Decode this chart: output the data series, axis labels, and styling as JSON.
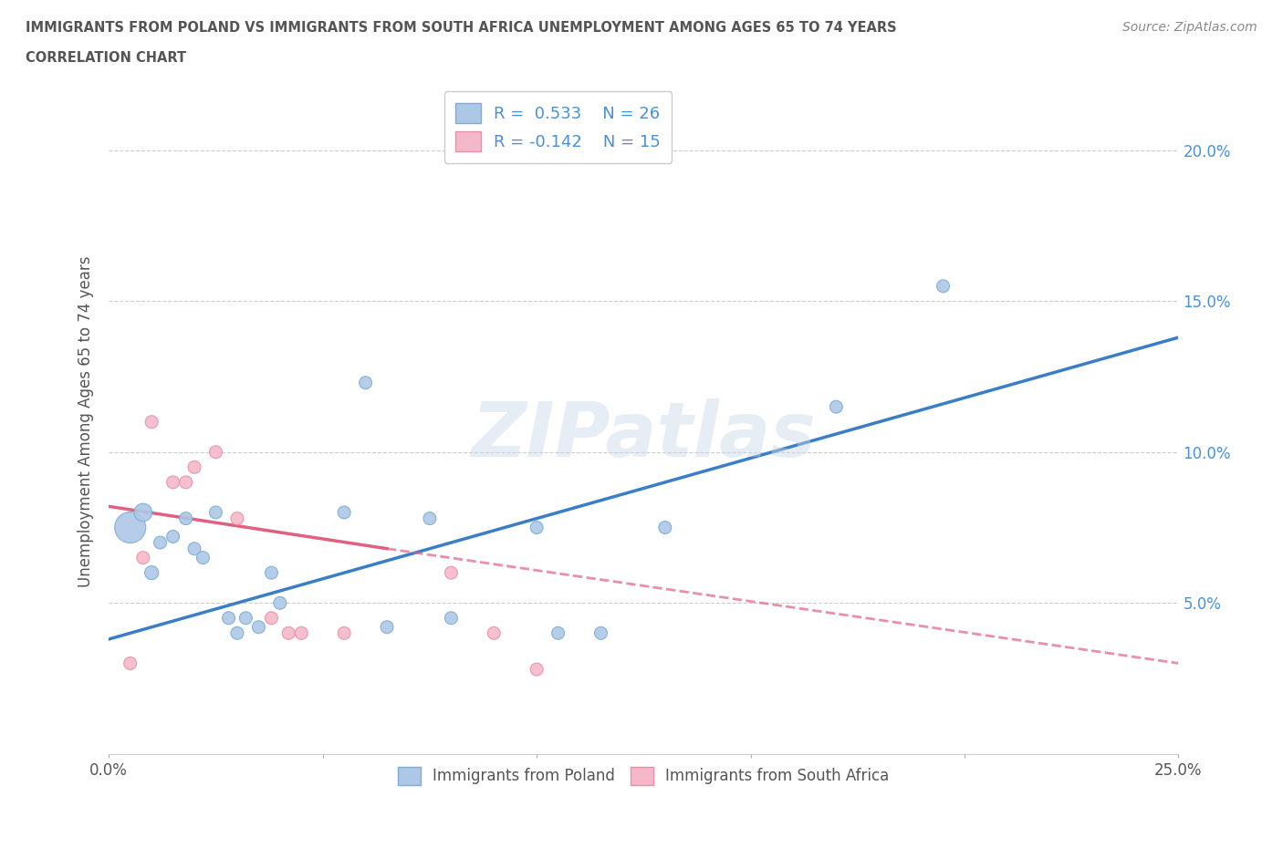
{
  "title_line1": "IMMIGRANTS FROM POLAND VS IMMIGRANTS FROM SOUTH AFRICA UNEMPLOYMENT AMONG AGES 65 TO 74 YEARS",
  "title_line2": "CORRELATION CHART",
  "source": "Source: ZipAtlas.com",
  "ylabel": "Unemployment Among Ages 65 to 74 years",
  "xlim": [
    0.0,
    0.25
  ],
  "ylim": [
    0.0,
    0.22
  ],
  "xticks": [
    0.0,
    0.05,
    0.1,
    0.15,
    0.2,
    0.25
  ],
  "yticks": [
    0.05,
    0.1,
    0.15,
    0.2
  ],
  "xtick_labels": [
    "0.0%",
    "",
    "",
    "",
    "",
    "25.0%"
  ],
  "ytick_labels_right": [
    "5.0%",
    "10.0%",
    "15.0%",
    "20.0%"
  ],
  "poland_color": "#adc8e6",
  "south_africa_color": "#f5b8c8",
  "poland_edge_color": "#7aadd4",
  "south_africa_edge_color": "#e88faa",
  "poland_line_color": "#3a7ec8",
  "south_africa_line_color": "#e06080",
  "r_poland": 0.533,
  "n_poland": 26,
  "r_south_africa": -0.142,
  "n_south_africa": 15,
  "legend_poland": "Immigrants from Poland",
  "legend_south_africa": "Immigrants from South Africa",
  "poland_scatter_x": [
    0.005,
    0.008,
    0.01,
    0.012,
    0.015,
    0.018,
    0.02,
    0.022,
    0.025,
    0.028,
    0.03,
    0.032,
    0.035,
    0.038,
    0.04,
    0.055,
    0.06,
    0.065,
    0.075,
    0.08,
    0.1,
    0.105,
    0.115,
    0.13,
    0.17,
    0.195
  ],
  "poland_scatter_y": [
    0.075,
    0.08,
    0.06,
    0.07,
    0.072,
    0.078,
    0.068,
    0.065,
    0.08,
    0.045,
    0.04,
    0.045,
    0.042,
    0.06,
    0.05,
    0.08,
    0.123,
    0.042,
    0.078,
    0.045,
    0.075,
    0.04,
    0.04,
    0.075,
    0.115,
    0.155
  ],
  "poland_sizes": [
    600,
    200,
    120,
    100,
    100,
    100,
    100,
    100,
    100,
    100,
    100,
    100,
    100,
    100,
    100,
    100,
    100,
    100,
    100,
    100,
    100,
    100,
    100,
    100,
    100,
    100
  ],
  "south_africa_scatter_x": [
    0.005,
    0.008,
    0.01,
    0.015,
    0.018,
    0.02,
    0.025,
    0.03,
    0.038,
    0.042,
    0.045,
    0.055,
    0.08,
    0.09,
    0.1
  ],
  "south_africa_scatter_y": [
    0.03,
    0.065,
    0.11,
    0.09,
    0.09,
    0.095,
    0.1,
    0.078,
    0.045,
    0.04,
    0.04,
    0.04,
    0.06,
    0.04,
    0.028
  ],
  "south_africa_sizes": [
    100,
    100,
    100,
    100,
    100,
    100,
    100,
    100,
    100,
    100,
    100,
    100,
    100,
    100,
    100
  ],
  "poland_trendline": [
    0.0,
    0.25,
    0.038,
    0.138
  ],
  "sa_solid_trendline": [
    0.0,
    0.065,
    0.082,
    0.068
  ],
  "sa_dash_trendline": [
    0.065,
    0.25,
    0.068,
    0.03
  ],
  "watermark": "ZIPatlas",
  "background_color": "#ffffff",
  "grid_color": "#cccccc"
}
